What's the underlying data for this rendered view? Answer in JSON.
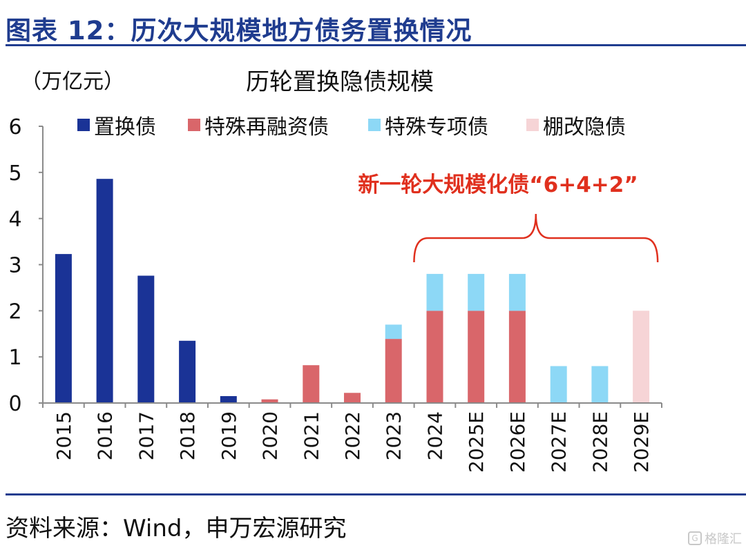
{
  "figure": {
    "title": "图表 12：历次大规模地方债务置换情况",
    "source": "资料来源：Wind，申万宏源研究",
    "watermark": "格隆汇"
  },
  "colors": {
    "accent": "#1f3c8f",
    "annotation": "#e0301e"
  },
  "chart_data": {
    "type": "bar",
    "stacked": true,
    "title": "历轮置换隐债规模",
    "ylabel": "（万亿元）",
    "xlabel": "",
    "ylim": [
      0,
      6
    ],
    "yticks": [
      0,
      1,
      2,
      3,
      4,
      5,
      6
    ],
    "grid": false,
    "legend_position": "top",
    "categories": [
      "2015",
      "2016",
      "2017",
      "2018",
      "2019",
      "2020",
      "2021",
      "2022",
      "2023",
      "2024",
      "2025E",
      "2026E",
      "2027E",
      "2028E",
      "2029E"
    ],
    "series": [
      {
        "name": "置换债",
        "color": "#1a3396",
        "values": [
          3.23,
          4.86,
          2.76,
          1.35,
          0.15,
          0,
          0,
          0,
          0,
          0,
          0,
          0,
          0,
          0,
          0
        ]
      },
      {
        "name": "特殊再融资债",
        "color": "#d9666a",
        "values": [
          0,
          0,
          0,
          0,
          0,
          0.08,
          0.82,
          0.22,
          1.39,
          2,
          2,
          2,
          0,
          0,
          0
        ]
      },
      {
        "name": "特殊专项债",
        "color": "#8dd8f6",
        "values": [
          0,
          0,
          0,
          0,
          0,
          0,
          0,
          0,
          0.31,
          0.8,
          0.8,
          0.8,
          0.8,
          0.8,
          0
        ]
      },
      {
        "name": "棚改隐债",
        "color": "#f6d4d6",
        "values": [
          0,
          0,
          0,
          0,
          0,
          0,
          0,
          0,
          0,
          0,
          0,
          0,
          0,
          0,
          2
        ]
      }
    ],
    "annotation": {
      "text": "新一轮大规模化债“6+4+2”",
      "bracket_from": "2024",
      "bracket_to": "2029E"
    }
  }
}
